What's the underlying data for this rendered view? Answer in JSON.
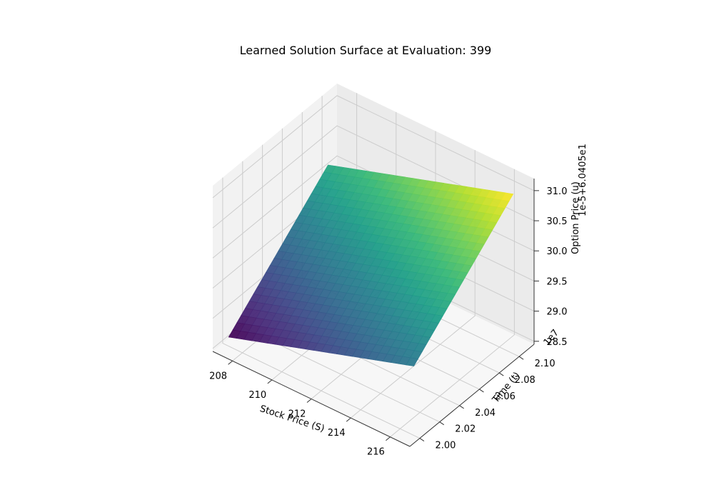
{
  "chart_data": {
    "type": "surface",
    "title": "Learned Solution Surface at Evaluation: 399",
    "xlabel": "Stock Price (S)",
    "ylabel": "Time (t)",
    "zlabel": "Option Price (u)",
    "x_ticks": [
      "208",
      "210",
      "212",
      "214",
      "216"
    ],
    "y_ticks": [
      "2.00",
      "2.02",
      "2.04",
      "2.06",
      "2.08",
      "2.10"
    ],
    "z_ticks": [
      "28.5",
      "29.0",
      "29.5",
      "30.0",
      "30.5",
      "31.0"
    ],
    "y_offset_text": "1e7",
    "z_offset_text": "1e-5+6.0405e1",
    "x_range": [
      207,
      217
    ],
    "y_range_scaled": [
      1.99,
      2.115
    ],
    "z_range_scaled": [
      28.45,
      31.2
    ],
    "colormap": "viridis",
    "grid": true,
    "surface_corners": [
      {
        "S": 207.3,
        "t_scaled": 2.0,
        "u_scaled": 28.6
      },
      {
        "S": 207.3,
        "t_scaled": 2.1,
        "u_scaled": 30.1
      },
      {
        "S": 216.7,
        "t_scaled": 2.0,
        "u_scaled": 29.6
      },
      {
        "S": 216.7,
        "t_scaled": 2.1,
        "u_scaled": 31.1
      }
    ]
  }
}
